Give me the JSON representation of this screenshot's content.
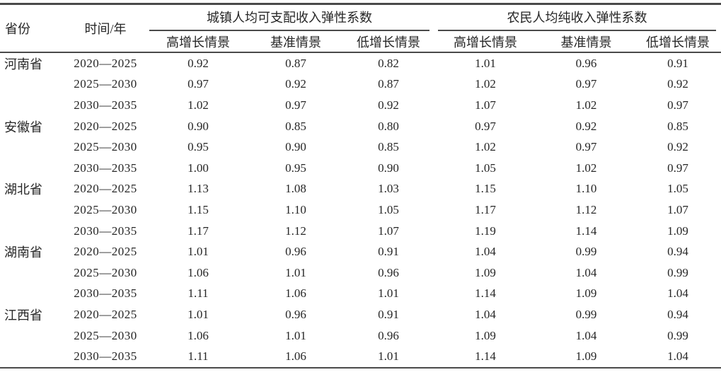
{
  "table": {
    "columns": {
      "province": "省份",
      "period": "时间/年",
      "group_urban": "城镇人均可支配收入弹性系数",
      "group_rural": "农民人均纯收入弹性系数",
      "scenarios": [
        "高增长情景",
        "基准情景",
        "低增长情景"
      ]
    },
    "rows": [
      {
        "province": "河南省",
        "period": "2020—2025",
        "urban": [
          "0.92",
          "0.87",
          "0.82"
        ],
        "rural": [
          "1.01",
          "0.96",
          "0.91"
        ]
      },
      {
        "province": "",
        "period": "2025—2030",
        "urban": [
          "0.97",
          "0.92",
          "0.87"
        ],
        "rural": [
          "1.02",
          "0.97",
          "0.92"
        ]
      },
      {
        "province": "",
        "period": "2030—2035",
        "urban": [
          "1.02",
          "0.97",
          "0.92"
        ],
        "rural": [
          "1.07",
          "1.02",
          "0.97"
        ]
      },
      {
        "province": "安徽省",
        "period": "2020—2025",
        "urban": [
          "0.90",
          "0.85",
          "0.80"
        ],
        "rural": [
          "0.97",
          "0.92",
          "0.85"
        ]
      },
      {
        "province": "",
        "period": "2025—2030",
        "urban": [
          "0.95",
          "0.90",
          "0.85"
        ],
        "rural": [
          "1.02",
          "0.97",
          "0.92"
        ]
      },
      {
        "province": "",
        "period": "2030—2035",
        "urban": [
          "1.00",
          "0.95",
          "0.90"
        ],
        "rural": [
          "1.05",
          "1.02",
          "0.97"
        ]
      },
      {
        "province": "湖北省",
        "period": "2020—2025",
        "urban": [
          "1.13",
          "1.08",
          "1.03"
        ],
        "rural": [
          "1.15",
          "1.10",
          "1.05"
        ]
      },
      {
        "province": "",
        "period": "2025—2030",
        "urban": [
          "1.15",
          "1.10",
          "1.05"
        ],
        "rural": [
          "1.17",
          "1.12",
          "1.07"
        ]
      },
      {
        "province": "",
        "period": "2030—2035",
        "urban": [
          "1.17",
          "1.12",
          "1.07"
        ],
        "rural": [
          "1.19",
          "1.14",
          "1.09"
        ]
      },
      {
        "province": "湖南省",
        "period": "2020—2025",
        "urban": [
          "1.01",
          "0.96",
          "0.91"
        ],
        "rural": [
          "1.04",
          "0.99",
          "0.94"
        ]
      },
      {
        "province": "",
        "period": "2025—2030",
        "urban": [
          "1.06",
          "1.01",
          "0.96"
        ],
        "rural": [
          "1.09",
          "1.04",
          "0.99"
        ]
      },
      {
        "province": "",
        "period": "2030—2035",
        "urban": [
          "1.11",
          "1.06",
          "1.01"
        ],
        "rural": [
          "1.14",
          "1.09",
          "1.04"
        ]
      },
      {
        "province": "江西省",
        "period": "2020—2025",
        "urban": [
          "1.01",
          "0.96",
          "0.91"
        ],
        "rural": [
          "1.04",
          "0.99",
          "0.94"
        ]
      },
      {
        "province": "",
        "period": "2025—2030",
        "urban": [
          "1.06",
          "1.01",
          "0.96"
        ],
        "rural": [
          "1.09",
          "1.04",
          "0.99"
        ]
      },
      {
        "province": "",
        "period": "2030—2035",
        "urban": [
          "1.11",
          "1.06",
          "1.01"
        ],
        "rural": [
          "1.14",
          "1.09",
          "1.04"
        ]
      }
    ]
  },
  "colors": {
    "text": "#262626",
    "line": "#4a4a4a",
    "background": "#ffffff"
  }
}
